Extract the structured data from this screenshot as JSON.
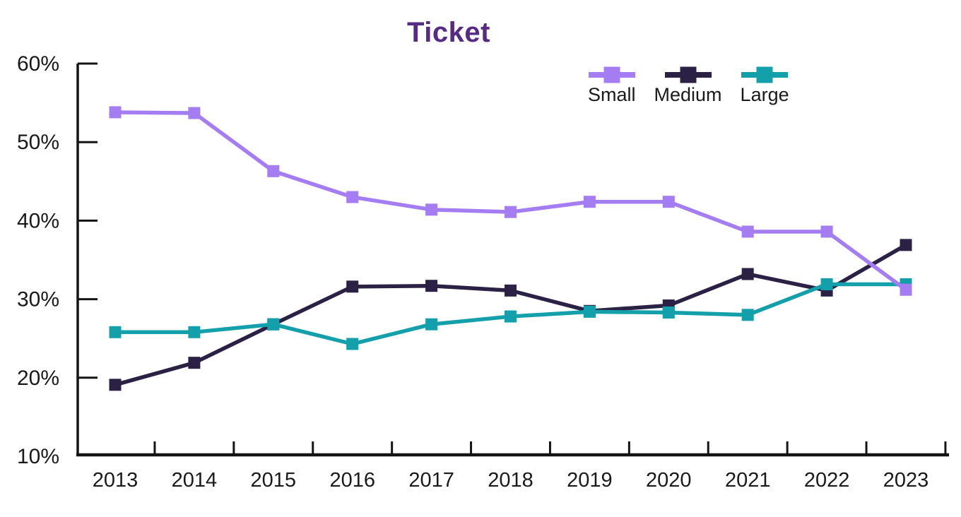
{
  "chart_data": {
    "type": "line",
    "title": "Ticket",
    "title_color": "#562a85",
    "categories": [
      "2013",
      "2014",
      "2015",
      "2016",
      "2017",
      "2018",
      "2019",
      "2020",
      "2021",
      "2022",
      "2023"
    ],
    "series": [
      {
        "name": "Small",
        "color": "#a57df2",
        "z": 3,
        "values": [
          53.8,
          53.7,
          46.3,
          43.0,
          41.4,
          41.1,
          42.4,
          42.4,
          38.6,
          38.6,
          31.2
        ]
      },
      {
        "name": "Medium",
        "color": "#2a2145",
        "z": 1,
        "values": [
          19.1,
          21.9,
          26.8,
          31.6,
          31.7,
          31.1,
          28.5,
          29.2,
          33.2,
          31.1,
          36.9
        ]
      },
      {
        "name": "Large",
        "color": "#14a0aa",
        "z": 2,
        "values": [
          25.8,
          25.8,
          26.8,
          24.3,
          26.8,
          27.8,
          28.4,
          28.3,
          28.0,
          31.9,
          31.9
        ]
      }
    ],
    "xlabel": "",
    "ylabel": "",
    "ylim": [
      10,
      60
    ],
    "ytick_step": 10,
    "ytick_suffix": "%",
    "grid": false,
    "legend_position": "top-right",
    "axis_color": "#141414",
    "label_color": "#1a1a1a"
  }
}
